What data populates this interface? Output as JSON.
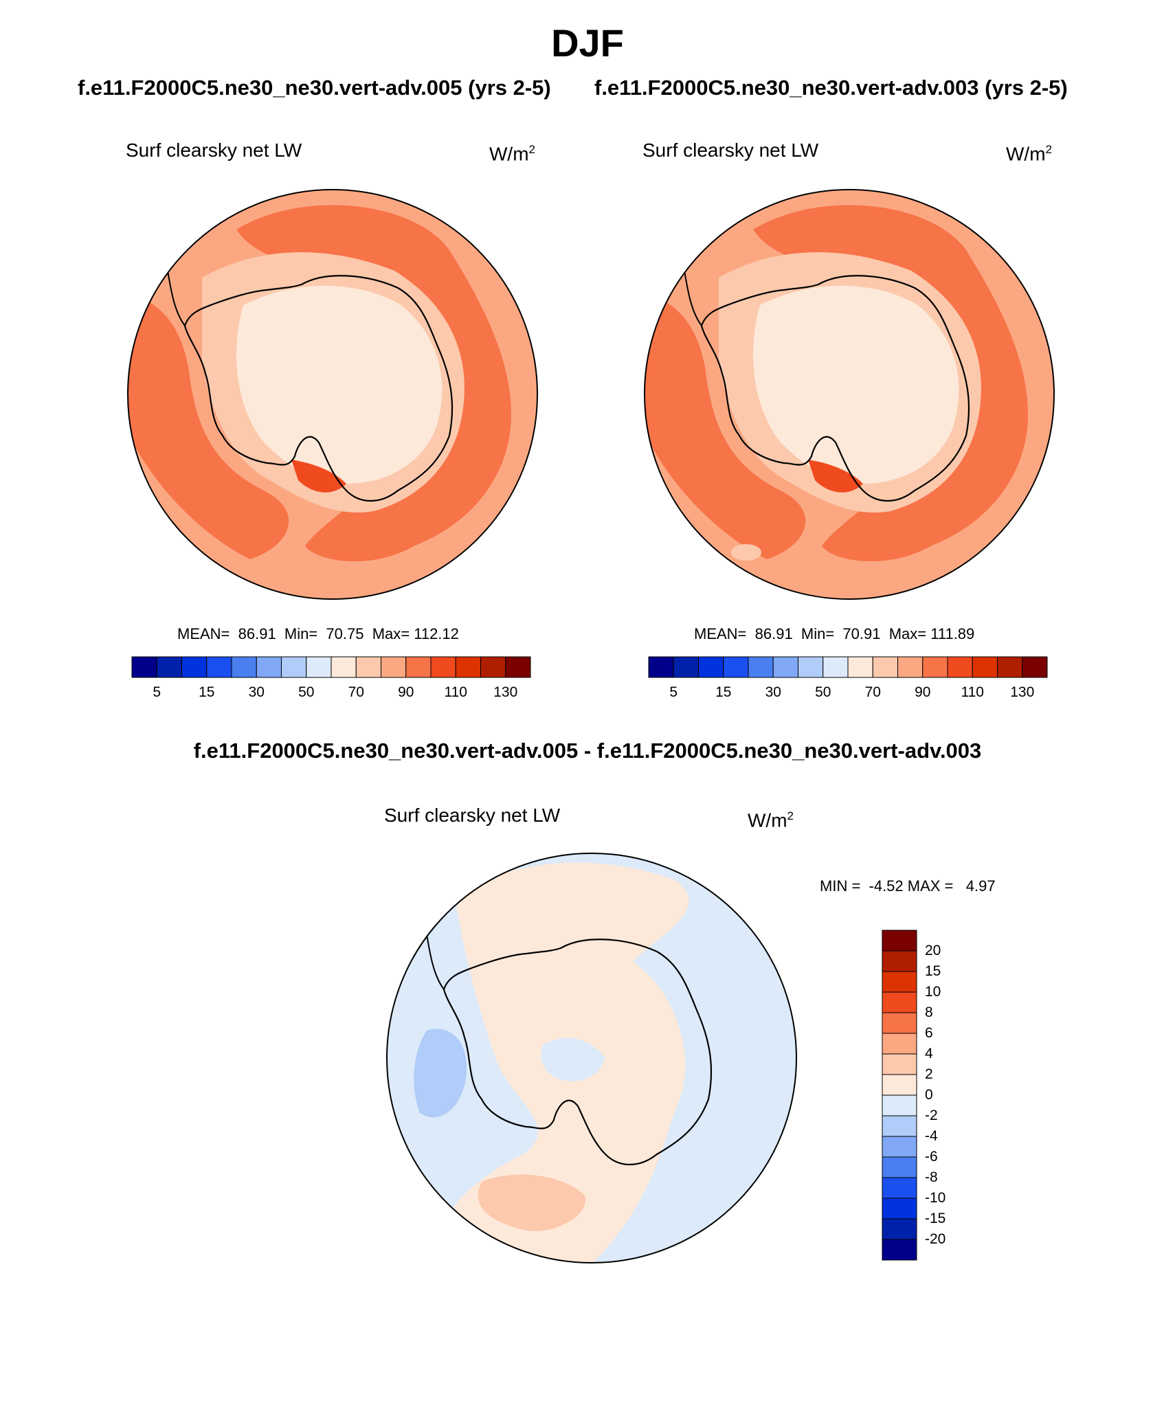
{
  "page": {
    "title": "DJF",
    "diff_title": "f.e11.F2000C5.ne30_ne30.vert-adv.005 - f.e11.F2000C5.ne30_ne30.vert-adv.003"
  },
  "panels": [
    {
      "case_title": "f.e11.F2000C5.ne30_ne30.vert-adv.005 (yrs 2-5)",
      "variable": "Surf clearsky net LW",
      "units_base": "W/m",
      "units_exp": "2",
      "stats": "MEAN=  86.91  Min=  70.75  Max= 112.12"
    },
    {
      "case_title": "f.e11.F2000C5.ne30_ne30.vert-adv.003 (yrs 2-5)",
      "variable": "Surf clearsky net LW",
      "units_base": "W/m",
      "units_exp": "2",
      "stats": "MEAN=  86.91  Min=  70.91  Max= 111.89"
    },
    {
      "variable": "Surf clearsky net LW",
      "units_base": "W/m",
      "units_exp": "2",
      "stats": "MIN =  -4.52 MAX =   4.97"
    }
  ],
  "colorbars": {
    "abs_ticks": [
      "5",
      "15",
      "30",
      "50",
      "70",
      "90",
      "110",
      "130"
    ],
    "abs_colors": [
      "#00008a",
      "#0022aa",
      "#0033dd",
      "#1a4ff0",
      "#4a7ff0",
      "#80a8f5",
      "#b0ccf8",
      "#dceaf9",
      "#fde9d9",
      "#fcc9ad",
      "#fba882",
      "#f77348",
      "#f04a1f",
      "#dd3300",
      "#b01e00",
      "#7a0000"
    ],
    "diff_ticks": [
      "20",
      "15",
      "10",
      "8",
      "6",
      "4",
      "2",
      "0",
      "-2",
      "-4",
      "-6",
      "-8",
      "-10",
      "-15",
      "-20"
    ],
    "diff_colors_top_to_bottom": [
      "#7a0000",
      "#b01e00",
      "#dd3300",
      "#f04a1f",
      "#f77348",
      "#fba882",
      "#fcc9ad",
      "#fde9d9",
      "#dceaf9",
      "#b0ccf8",
      "#80a8f5",
      "#4a7ff0",
      "#1a4ff0",
      "#0033dd",
      "#0022aa",
      "#00008a"
    ]
  },
  "map_colors": {
    "ocean_far": "#fba882",
    "ocean_mid": "#f77348",
    "ice": "#fcc9ad",
    "plateau": "#fde9d9",
    "diff_neg": "#dceaf9",
    "diff_pos": "#fde9d9",
    "diff_pos2": "#fcc9ad",
    "diff_neg2": "#b0ccf8"
  }
}
